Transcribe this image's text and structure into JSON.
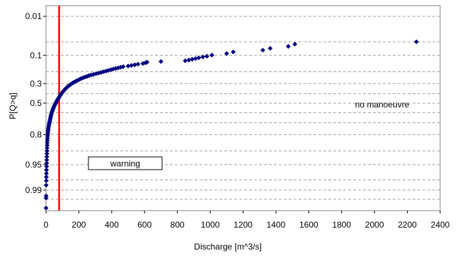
{
  "chart_data": {
    "type": "scatter",
    "title": "",
    "xlabel": "Discharge [m^3/s]",
    "ylabel": "P[Q>q]",
    "xlim": [
      0,
      2400
    ],
    "x_ticks": [
      0,
      200,
      400,
      600,
      800,
      1000,
      1200,
      1400,
      1600,
      1800,
      2000,
      2200,
      2400
    ],
    "y_scale": "probability (normal quantile), increasing downward",
    "y_ticks": [
      0.01,
      0.1,
      0.3,
      0.5,
      0.8,
      0.95,
      0.99
    ],
    "y_tick_labels": [
      "0.01",
      "0.1",
      "0.3",
      "0.5",
      "0.8",
      "0.95",
      "0.99"
    ],
    "grid": "horizontal dashed",
    "legend": "none",
    "marker_color": "#000080",
    "marker": "diamond",
    "threshold_line": {
      "x": 80,
      "color": "#ff0000"
    },
    "annotations": [
      {
        "text": "no manoeuvre",
        "x": 1950,
        "y": 0.65
      },
      {
        "text": "warning",
        "x": 480,
        "y": 0.985,
        "boxed": true
      }
    ],
    "points": [
      {
        "x": 2255,
        "y": 0.05
      },
      {
        "x": 1515,
        "y": 0.057
      },
      {
        "x": 1475,
        "y": 0.064
      },
      {
        "x": 1365,
        "y": 0.071
      },
      {
        "x": 1320,
        "y": 0.078
      },
      {
        "x": 1140,
        "y": 0.085
      },
      {
        "x": 1100,
        "y": 0.092
      },
      {
        "x": 1010,
        "y": 0.099
      },
      {
        "x": 980,
        "y": 0.104
      },
      {
        "x": 955,
        "y": 0.108
      },
      {
        "x": 930,
        "y": 0.112
      },
      {
        "x": 910,
        "y": 0.116
      },
      {
        "x": 890,
        "y": 0.12
      },
      {
        "x": 870,
        "y": 0.124
      },
      {
        "x": 848,
        "y": 0.128
      },
      {
        "x": 700,
        "y": 0.132
      },
      {
        "x": 615,
        "y": 0.136
      },
      {
        "x": 605,
        "y": 0.14
      },
      {
        "x": 590,
        "y": 0.144
      },
      {
        "x": 560,
        "y": 0.148
      },
      {
        "x": 540,
        "y": 0.152
      },
      {
        "x": 520,
        "y": 0.156
      },
      {
        "x": 500,
        "y": 0.16
      },
      {
        "x": 470,
        "y": 0.164
      },
      {
        "x": 455,
        "y": 0.168
      },
      {
        "x": 440,
        "y": 0.172
      },
      {
        "x": 425,
        "y": 0.176
      },
      {
        "x": 410,
        "y": 0.18
      },
      {
        "x": 395,
        "y": 0.185
      },
      {
        "x": 380,
        "y": 0.19
      },
      {
        "x": 365,
        "y": 0.195
      },
      {
        "x": 350,
        "y": 0.2
      },
      {
        "x": 335,
        "y": 0.205
      },
      {
        "x": 320,
        "y": 0.21
      },
      {
        "x": 305,
        "y": 0.215
      },
      {
        "x": 290,
        "y": 0.22
      },
      {
        "x": 275,
        "y": 0.225
      },
      {
        "x": 262,
        "y": 0.23
      },
      {
        "x": 250,
        "y": 0.236
      },
      {
        "x": 238,
        "y": 0.242
      },
      {
        "x": 226,
        "y": 0.248
      },
      {
        "x": 214,
        "y": 0.255
      },
      {
        "x": 203,
        "y": 0.262
      },
      {
        "x": 192,
        "y": 0.27
      },
      {
        "x": 182,
        "y": 0.278
      },
      {
        "x": 172,
        "y": 0.286
      },
      {
        "x": 163,
        "y": 0.294
      },
      {
        "x": 154,
        "y": 0.303
      },
      {
        "x": 146,
        "y": 0.312
      },
      {
        "x": 138,
        "y": 0.322
      },
      {
        "x": 130,
        "y": 0.332
      },
      {
        "x": 123,
        "y": 0.343
      },
      {
        "x": 116,
        "y": 0.354
      },
      {
        "x": 110,
        "y": 0.366
      },
      {
        "x": 104,
        "y": 0.378
      },
      {
        "x": 98,
        "y": 0.39
      },
      {
        "x": 92,
        "y": 0.403
      },
      {
        "x": 87,
        "y": 0.416
      },
      {
        "x": 82,
        "y": 0.43
      },
      {
        "x": 77,
        "y": 0.444
      },
      {
        "x": 72,
        "y": 0.458
      },
      {
        "x": 67,
        "y": 0.472
      },
      {
        "x": 63,
        "y": 0.486
      },
      {
        "x": 59,
        "y": 0.5
      },
      {
        "x": 55,
        "y": 0.514
      },
      {
        "x": 51,
        "y": 0.528
      },
      {
        "x": 47,
        "y": 0.542
      },
      {
        "x": 44,
        "y": 0.556
      },
      {
        "x": 41,
        "y": 0.57
      },
      {
        "x": 38,
        "y": 0.585
      },
      {
        "x": 35,
        "y": 0.6
      },
      {
        "x": 32,
        "y": 0.615
      },
      {
        "x": 30,
        "y": 0.63
      },
      {
        "x": 28,
        "y": 0.645
      },
      {
        "x": 26,
        "y": 0.66
      },
      {
        "x": 24,
        "y": 0.675
      },
      {
        "x": 22,
        "y": 0.69
      },
      {
        "x": 20,
        "y": 0.705
      },
      {
        "x": 18,
        "y": 0.72
      },
      {
        "x": 16,
        "y": 0.735
      },
      {
        "x": 14,
        "y": 0.75
      },
      {
        "x": 13,
        "y": 0.765
      },
      {
        "x": 12,
        "y": 0.78
      },
      {
        "x": 11,
        "y": 0.795
      },
      {
        "x": 10,
        "y": 0.81
      },
      {
        "x": 9,
        "y": 0.825
      },
      {
        "x": 8,
        "y": 0.84
      },
      {
        "x": 7.5,
        "y": 0.855
      },
      {
        "x": 7,
        "y": 0.87
      },
      {
        "x": 6.5,
        "y": 0.885
      },
      {
        "x": 6,
        "y": 0.9
      },
      {
        "x": 5.5,
        "y": 0.912
      },
      {
        "x": 5,
        "y": 0.924
      },
      {
        "x": 4.5,
        "y": 0.936
      },
      {
        "x": 4,
        "y": 0.946
      },
      {
        "x": 3.5,
        "y": 0.955
      },
      {
        "x": 3,
        "y": 0.963
      },
      {
        "x": 2.5,
        "y": 0.97
      },
      {
        "x": 2,
        "y": 0.976
      },
      {
        "x": 1.6,
        "y": 0.981
      },
      {
        "x": 1.2,
        "y": 0.986
      },
      {
        "x": 0.8,
        "y": 0.9935
      },
      {
        "x": 0.6,
        "y": 0.9945
      },
      {
        "x": 0.4,
        "y": 0.9975
      }
    ]
  }
}
